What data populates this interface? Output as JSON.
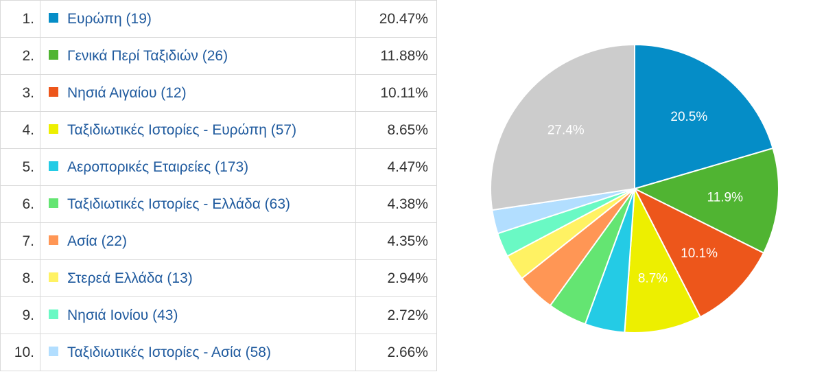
{
  "table": {
    "rows": [
      {
        "rank": "1.",
        "label": "Ευρώπη (19)",
        "percent": "20.47%",
        "color": "#058dc7"
      },
      {
        "rank": "2.",
        "label": "Γενικά Περί Ταξιδιών (26)",
        "percent": "11.88%",
        "color": "#50b432"
      },
      {
        "rank": "3.",
        "label": "Νησιά Αιγαίου (12)",
        "percent": "10.11%",
        "color": "#ed561b"
      },
      {
        "rank": "4.",
        "label": "Ταξιδιωτικές Ιστορίες - Ευρώπη (57)",
        "percent": "8.65%",
        "color": "#edef00"
      },
      {
        "rank": "5.",
        "label": "Αεροπορικές Εταιρείες (173)",
        "percent": "4.47%",
        "color": "#24cbe5"
      },
      {
        "rank": "6.",
        "label": "Ταξιδιωτικές Ιστορίες - Ελλάδα (63)",
        "percent": "4.38%",
        "color": "#64e572"
      },
      {
        "rank": "7.",
        "label": "Ασία (22)",
        "percent": "4.35%",
        "color": "#ff9655"
      },
      {
        "rank": "8.",
        "label": "Στερεά Ελλάδα (13)",
        "percent": "2.94%",
        "color": "#fff263"
      },
      {
        "rank": "9.",
        "label": "Νησιά Ιονίου (43)",
        "percent": "2.72%",
        "color": "#6af9c4"
      },
      {
        "rank": "10.",
        "label": "Ταξιδιωτικές Ιστορίες - Ασία (58)",
        "percent": "2.66%",
        "color": "#b2deff"
      }
    ]
  },
  "chart_data": {
    "type": "pie",
    "categories": [
      "Ευρώπη (19)",
      "Γενικά Περί Ταξιδιών (26)",
      "Νησιά Αιγαίου (12)",
      "Ταξιδιωτικές Ιστορίες - Ευρώπη (57)",
      "Αεροπορικές Εταιρείες (173)",
      "Ταξιδιωτικές Ιστορίες - Ελλάδα (63)",
      "Ασία (22)",
      "Στερεά Ελλάδα (13)",
      "Νησιά Ιονίου (43)",
      "Ταξιδιωτικές Ιστορίες - Ασία (58)",
      ""
    ],
    "values": [
      20.47,
      11.88,
      10.11,
      8.65,
      4.47,
      4.38,
      4.35,
      2.94,
      2.72,
      2.66,
      27.37
    ],
    "slice_labels": [
      "20.5%",
      "11.9%",
      "10.1%",
      "8.7%",
      "",
      "",
      "",
      "",
      "",
      "",
      "27.4%"
    ],
    "colors": [
      "#058dc7",
      "#50b432",
      "#ed561b",
      "#edef00",
      "#24cbe5",
      "#64e572",
      "#ff9655",
      "#fff263",
      "#6af9c4",
      "#b2deff",
      "#cccccc"
    ],
    "start_angle_deg": 0,
    "direction": "clockwise"
  }
}
